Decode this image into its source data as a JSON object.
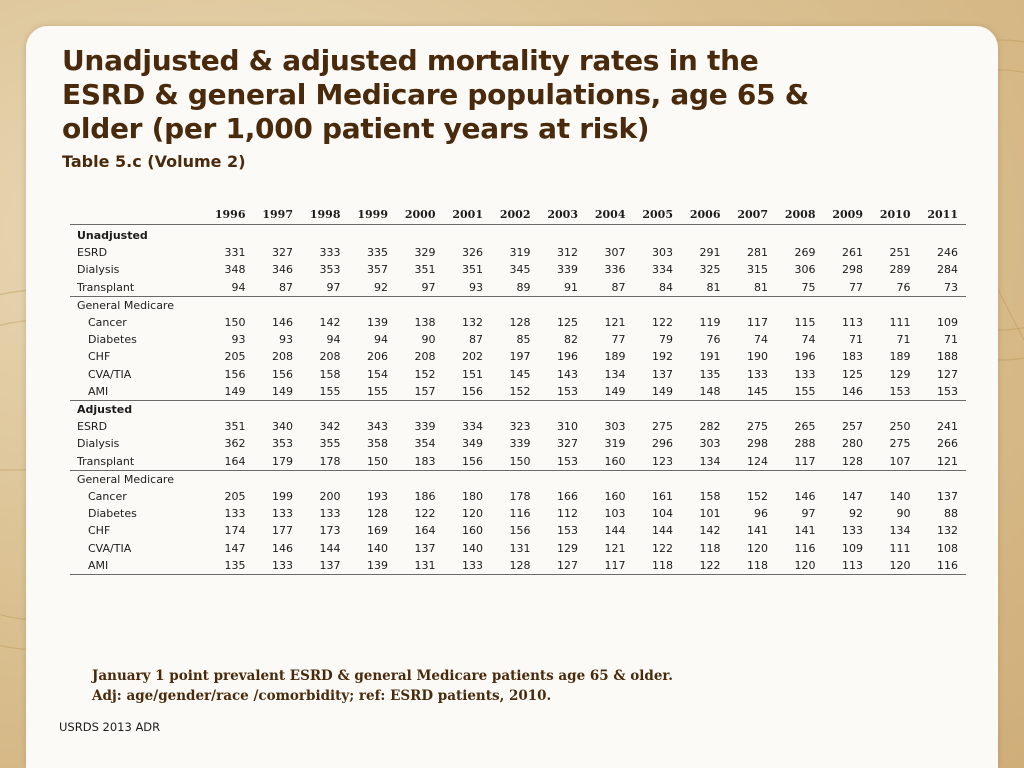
{
  "slide": {
    "title": "Unadjusted & adjusted mortality rates in the ESRD & general Medicare populations, age 65 & older (per 1,000 patient years at risk)",
    "subtitle": "Table 5.c (Volume 2)",
    "footnote_line1": "January 1 point prevalent ESRD & general Medicare patients age 65 & older.",
    "footnote_line2": "Adj: age/gender/race /comorbidity; ref: ESRD patients, 2010.",
    "source": "USRDS 2013 ADR",
    "colors": {
      "title": "#4a2a0c",
      "background": "#dcc395",
      "card": "#fbfaf6"
    }
  },
  "table": {
    "years": [
      "1996",
      "1997",
      "1998",
      "1999",
      "2000",
      "2001",
      "2002",
      "2003",
      "2004",
      "2005",
      "2006",
      "2007",
      "2008",
      "2009",
      "2010",
      "2011"
    ],
    "sections": [
      {
        "label": "Unadjusted",
        "rows": [
          {
            "label": "ESRD",
            "indent": false,
            "values": [
              "331",
              "327",
              "333",
              "335",
              "329",
              "326",
              "319",
              "312",
              "307",
              "303",
              "291",
              "281",
              "269",
              "261",
              "251",
              "246"
            ]
          },
          {
            "label": "Dialysis",
            "indent": false,
            "values": [
              "348",
              "346",
              "353",
              "357",
              "351",
              "351",
              "345",
              "339",
              "336",
              "334",
              "325",
              "315",
              "306",
              "298",
              "289",
              "284"
            ]
          },
          {
            "label": "Transplant",
            "indent": false,
            "values": [
              "94",
              "87",
              "97",
              "92",
              "97",
              "93",
              "89",
              "91",
              "87",
              "84",
              "81",
              "81",
              "75",
              "77",
              "76",
              "73"
            ]
          },
          {
            "label": "General Medicare",
            "indent": false,
            "group": true,
            "values": []
          },
          {
            "label": "Cancer",
            "indent": true,
            "values": [
              "150",
              "146",
              "142",
              "139",
              "138",
              "132",
              "128",
              "125",
              "121",
              "122",
              "119",
              "117",
              "115",
              "113",
              "111",
              "109"
            ]
          },
          {
            "label": "Diabetes",
            "indent": true,
            "values": [
              "93",
              "93",
              "94",
              "94",
              "90",
              "87",
              "85",
              "82",
              "77",
              "79",
              "76",
              "74",
              "74",
              "71",
              "71",
              "71"
            ]
          },
          {
            "label": "CHF",
            "indent": true,
            "values": [
              "205",
              "208",
              "208",
              "206",
              "208",
              "202",
              "197",
              "196",
              "189",
              "192",
              "191",
              "190",
              "196",
              "183",
              "189",
              "188"
            ]
          },
          {
            "label": "CVA/TIA",
            "indent": true,
            "values": [
              "156",
              "156",
              "158",
              "154",
              "152",
              "151",
              "145",
              "143",
              "134",
              "137",
              "135",
              "133",
              "133",
              "125",
              "129",
              "127"
            ]
          },
          {
            "label": "AMI",
            "indent": true,
            "values": [
              "149",
              "149",
              "155",
              "155",
              "157",
              "156",
              "152",
              "153",
              "149",
              "149",
              "148",
              "145",
              "155",
              "146",
              "153",
              "153"
            ]
          }
        ]
      },
      {
        "label": "Adjusted",
        "rows": [
          {
            "label": "ESRD",
            "indent": false,
            "values": [
              "351",
              "340",
              "342",
              "343",
              "339",
              "334",
              "323",
              "310",
              "303",
              "275",
              "282",
              "275",
              "265",
              "257",
              "250",
              "241"
            ]
          },
          {
            "label": "Dialysis",
            "indent": false,
            "values": [
              "362",
              "353",
              "355",
              "358",
              "354",
              "349",
              "339",
              "327",
              "319",
              "296",
              "303",
              "298",
              "288",
              "280",
              "275",
              "266"
            ]
          },
          {
            "label": "Transplant",
            "indent": false,
            "values": [
              "164",
              "179",
              "178",
              "150",
              "183",
              "156",
              "150",
              "153",
              "160",
              "123",
              "134",
              "124",
              "117",
              "128",
              "107",
              "121"
            ]
          },
          {
            "label": "General Medicare",
            "indent": false,
            "group": true,
            "values": []
          },
          {
            "label": "Cancer",
            "indent": true,
            "values": [
              "205",
              "199",
              "200",
              "193",
              "186",
              "180",
              "178",
              "166",
              "160",
              "161",
              "158",
              "152",
              "146",
              "147",
              "140",
              "137"
            ]
          },
          {
            "label": "Diabetes",
            "indent": true,
            "values": [
              "133",
              "133",
              "133",
              "128",
              "122",
              "120",
              "116",
              "112",
              "103",
              "104",
              "101",
              "96",
              "97",
              "92",
              "90",
              "88"
            ]
          },
          {
            "label": "CHF",
            "indent": true,
            "values": [
              "174",
              "177",
              "173",
              "169",
              "164",
              "160",
              "156",
              "153",
              "144",
              "144",
              "142",
              "141",
              "141",
              "133",
              "134",
              "132"
            ]
          },
          {
            "label": "CVA/TIA",
            "indent": true,
            "values": [
              "147",
              "146",
              "144",
              "140",
              "137",
              "140",
              "131",
              "129",
              "121",
              "122",
              "118",
              "120",
              "116",
              "109",
              "111",
              "108"
            ]
          },
          {
            "label": "AMI",
            "indent": true,
            "values": [
              "135",
              "133",
              "137",
              "139",
              "131",
              "133",
              "128",
              "127",
              "117",
              "118",
              "122",
              "118",
              "120",
              "113",
              "120",
              "116"
            ]
          }
        ]
      }
    ]
  }
}
